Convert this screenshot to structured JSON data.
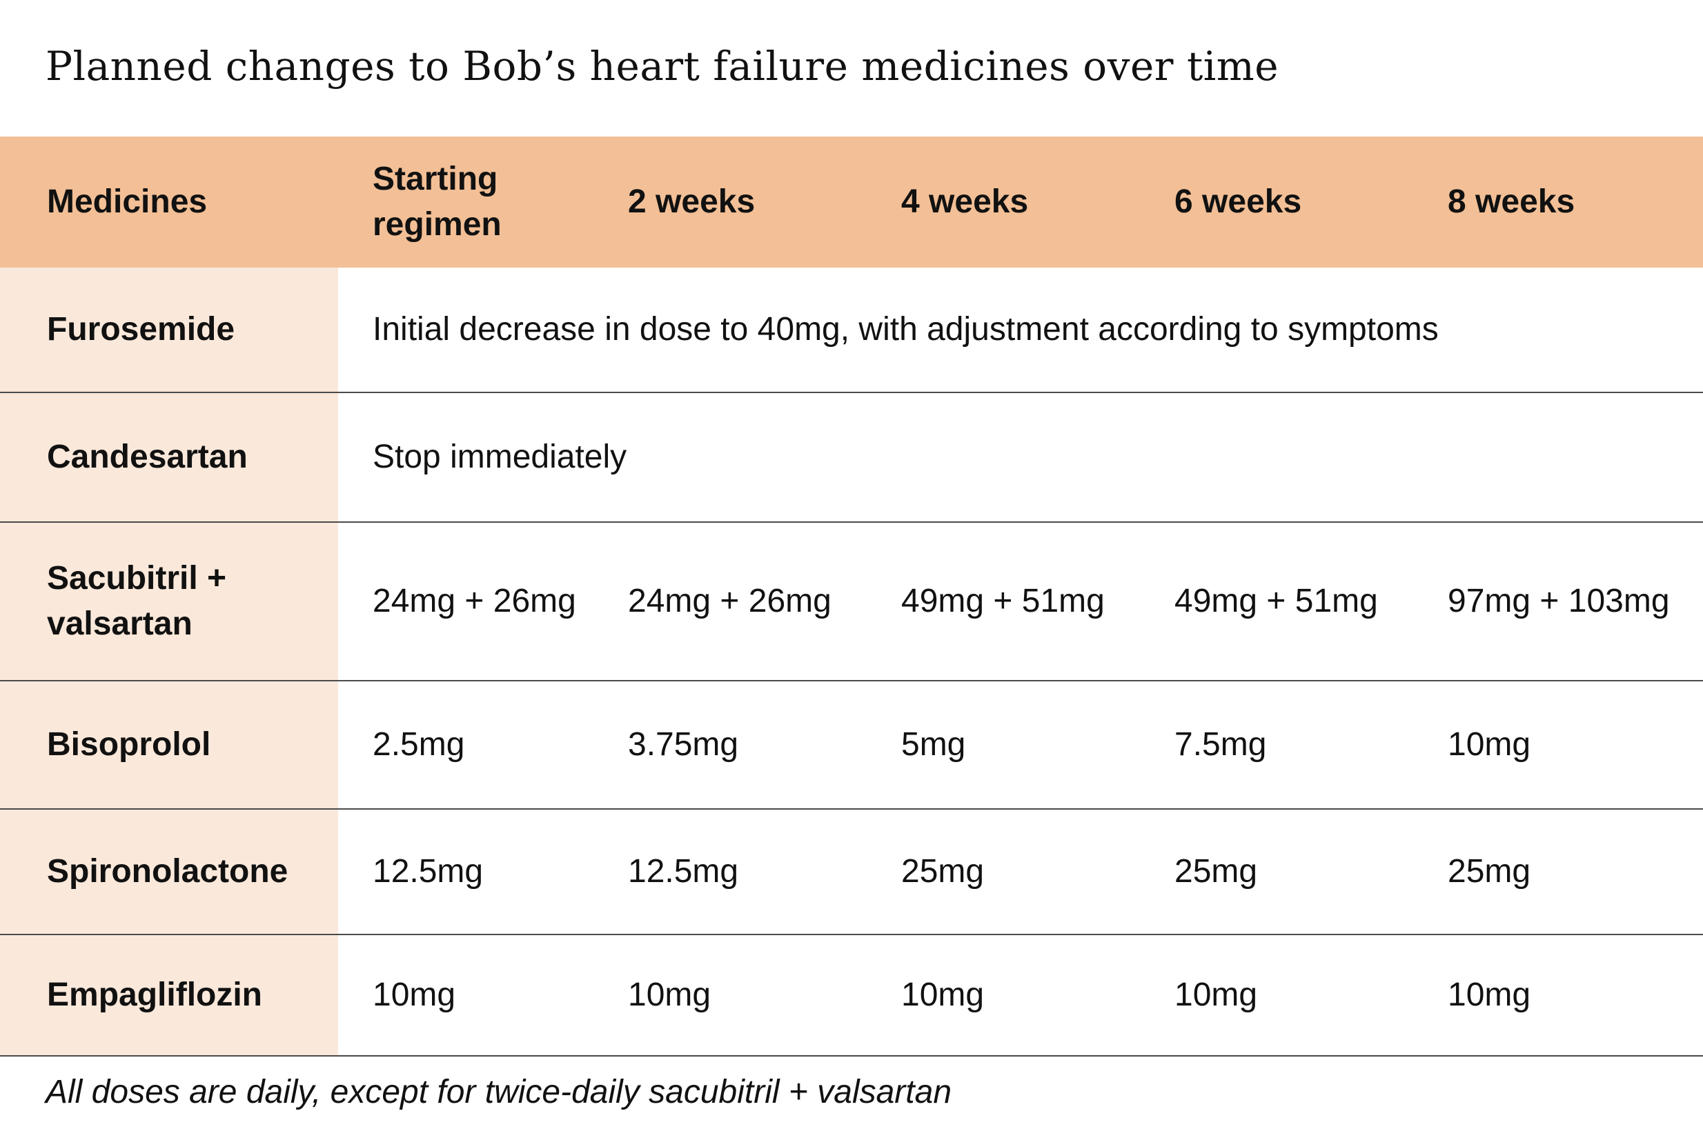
{
  "title": "Planned changes to Bob’s heart failure medicines over time",
  "table": {
    "headers": [
      "Medicines",
      "Starting regimen",
      "2 weeks",
      "4 weeks",
      "6 weeks",
      "8 weeks"
    ],
    "rows": [
      {
        "medicine": "Furosemide",
        "note": "Initial decrease in dose to 40mg, with adjustment according to symptoms"
      },
      {
        "medicine": "Candesartan",
        "note": "Stop immediately"
      },
      {
        "medicine": "Sacubitril + valsartan",
        "doses": [
          "24mg + 26mg",
          "24mg + 26mg",
          "49mg + 51mg",
          "49mg + 51mg",
          "97mg + 103mg"
        ]
      },
      {
        "medicine": "Bisoprolol",
        "doses": [
          "2.5mg",
          "3.75mg",
          "5mg",
          "7.5mg",
          "10mg"
        ]
      },
      {
        "medicine": "Spironolactone",
        "doses": [
          "12.5mg",
          "12.5mg",
          "25mg",
          "25mg",
          "25mg"
        ]
      },
      {
        "medicine": "Empagliflozin",
        "doses": [
          "10mg",
          "10mg",
          "10mg",
          "10mg",
          "10mg"
        ]
      }
    ]
  },
  "footnote": "All doses are daily, except for twice-daily sacubitril + valsartan",
  "colors": {
    "header_background": "#f2bf96",
    "medicine_column_background": "#fae8da",
    "row_divider": "#4a4a4a"
  }
}
